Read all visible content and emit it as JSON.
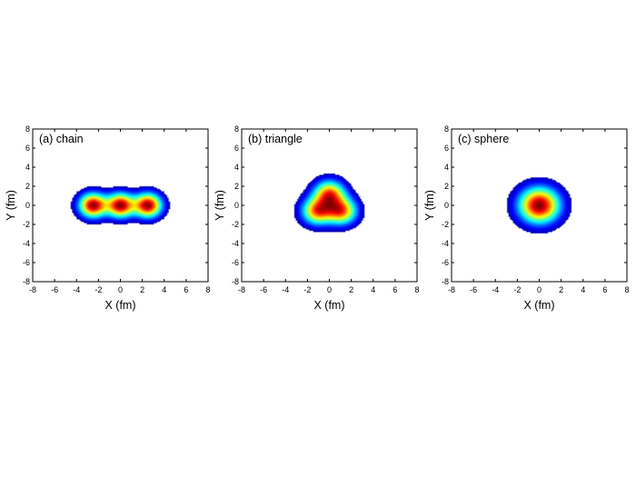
{
  "chart_data": [
    {
      "type": "heatmap",
      "title": "(a) chain",
      "xlabel": "X (fm)",
      "ylabel": "Y (fm)",
      "xlim": [
        -8,
        8
      ],
      "ylim": [
        -8,
        8
      ],
      "xticks": [
        -8,
        -6,
        -4,
        -2,
        0,
        2,
        4,
        6,
        8
      ],
      "yticks": [
        -8,
        -6,
        -4,
        -2,
        0,
        2,
        4,
        6,
        8
      ],
      "grid": false,
      "colormap": "jet",
      "centers": [
        {
          "x": -2.5,
          "y": 0
        },
        {
          "x": 0,
          "y": 0
        },
        {
          "x": 2.5,
          "y": 0
        }
      ],
      "outer_extent": {
        "x": [
          -5,
          5
        ],
        "y": [
          -2.2,
          2.2
        ]
      }
    },
    {
      "type": "heatmap",
      "title": "(b) triangle",
      "xlabel": "X (fm)",
      "ylabel": "Y (fm)",
      "xlim": [
        -8,
        8
      ],
      "ylim": [
        -8,
        8
      ],
      "xticks": [
        -8,
        -6,
        -4,
        -2,
        0,
        2,
        4,
        6,
        8
      ],
      "yticks": [
        -8,
        -6,
        -4,
        -2,
        0,
        2,
        4,
        6,
        8
      ],
      "grid": false,
      "colormap": "jet",
      "centers": [
        {
          "x": 0,
          "y": 1.2
        },
        {
          "x": -1.1,
          "y": -0.6
        },
        {
          "x": 1.1,
          "y": -0.6
        }
      ],
      "outer_extent": {
        "x": [
          -3.8,
          3.8
        ],
        "y": [
          -2.8,
          3.8
        ]
      }
    },
    {
      "type": "heatmap",
      "title": "(c) sphere",
      "xlabel": "X (fm)",
      "ylabel": "Y (fm)",
      "xlim": [
        -8,
        8
      ],
      "ylim": [
        -8,
        8
      ],
      "xticks": [
        -8,
        -6,
        -4,
        -2,
        0,
        2,
        4,
        6,
        8
      ],
      "yticks": [
        -8,
        -6,
        -4,
        -2,
        0,
        2,
        4,
        6,
        8
      ],
      "grid": false,
      "colormap": "jet",
      "centers": [
        {
          "x": 0,
          "y": 0
        }
      ],
      "outer_extent": {
        "x": [
          -3.2,
          3.2
        ],
        "y": [
          -3.2,
          3.2
        ]
      }
    }
  ]
}
